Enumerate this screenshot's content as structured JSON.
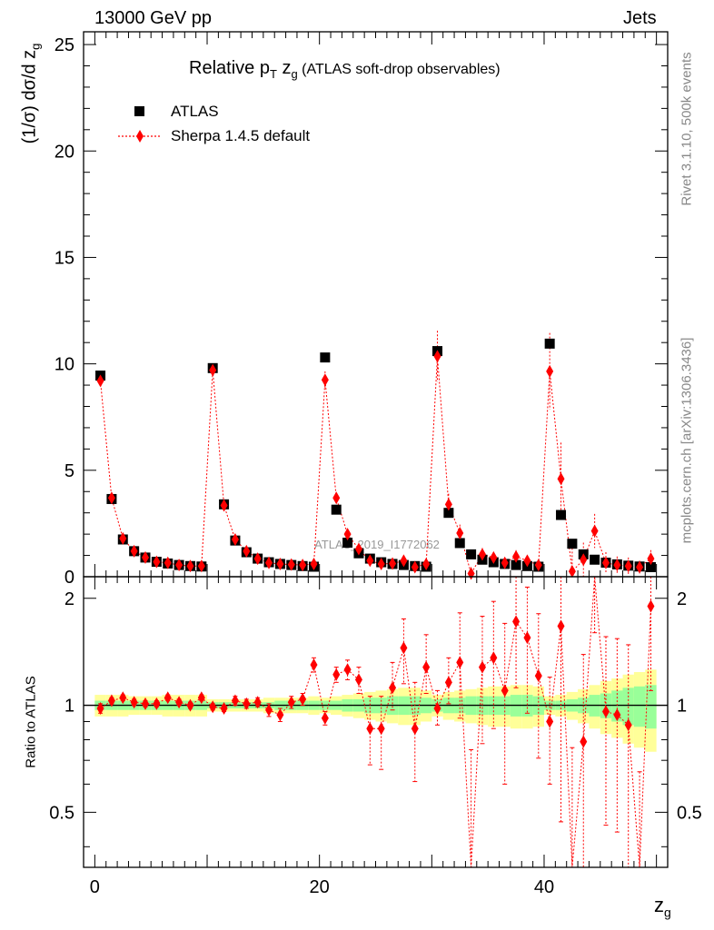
{
  "header": {
    "left": "13000 GeV pp",
    "right": "Jets"
  },
  "side_text": {
    "rivet": "Rivet 3.1.10,  500k events",
    "mcplots": "mcplots.cern.ch [arXiv:1306.3436]"
  },
  "watermark": "ATLAS_2019_I1772062",
  "legend": {
    "data_label": "ATLAS",
    "mc_label": "Sherpa 1.4.5 default"
  },
  "colors": {
    "data": "#000000",
    "mc": "#ff0000",
    "band_inner": "#99ff99",
    "band_outer": "#ffff99",
    "watermark": "#999999"
  },
  "chart_data": {
    "type": "scatter",
    "title_parts": {
      "pre": "Relative p",
      "sub1": "T",
      "mid": " z",
      "sub2": "g",
      "post": " (ATLAS soft-drop observables)"
    },
    "ylabel_upper": {
      "pre": "(1/σ) dσ/d z",
      "sub": "g"
    },
    "ylabel_lower": "Ratio to ATLAS",
    "xlabel": {
      "main": "z",
      "sub": "g"
    },
    "xlim": [
      -1,
      51
    ],
    "ylim_upper": [
      0,
      25.6
    ],
    "ylim_lower": [
      0.35,
      2.3
    ],
    "x_ticks": [
      "0",
      "20",
      "40"
    ],
    "y_ticks_upper": [
      "0",
      "5",
      "10",
      "15",
      "20",
      "25"
    ],
    "y_ticks_lower": [
      "0.5",
      "1",
      "2"
    ],
    "x": [
      0.5,
      1.5,
      2.5,
      3.5,
      4.5,
      5.5,
      6.5,
      7.5,
      8.5,
      9.5,
      10.5,
      11.5,
      12.5,
      13.5,
      14.5,
      15.5,
      16.5,
      17.5,
      18.5,
      19.5,
      20.5,
      21.5,
      22.5,
      23.5,
      24.5,
      25.5,
      26.5,
      27.5,
      28.5,
      29.5,
      30.5,
      31.5,
      32.5,
      33.5,
      34.5,
      35.5,
      36.5,
      37.5,
      38.5,
      39.5,
      40.5,
      41.5,
      42.5,
      43.5,
      44.5,
      45.5,
      46.5,
      47.5,
      48.5,
      49.5
    ],
    "series": [
      {
        "name": "ATLAS",
        "marker": "square",
        "values": [
          9.45,
          3.65,
          1.75,
          1.2,
          0.9,
          0.7,
          0.62,
          0.55,
          0.5,
          0.48,
          9.8,
          3.4,
          1.7,
          1.15,
          0.85,
          0.68,
          0.6,
          0.55,
          0.5,
          0.47,
          10.3,
          3.15,
          1.6,
          1.1,
          0.85,
          0.68,
          0.6,
          0.55,
          0.5,
          0.47,
          10.6,
          3.0,
          1.58,
          1.05,
          0.8,
          0.68,
          0.6,
          0.55,
          0.5,
          0.47,
          10.95,
          2.9,
          1.55,
          1.05,
          0.8,
          0.66,
          0.58,
          0.52,
          0.48,
          0.45
        ]
      },
      {
        "name": "Sherpa 1.4.5 default",
        "marker": "diamond",
        "values": [
          9.2,
          3.7,
          1.8,
          1.2,
          0.9,
          0.7,
          0.65,
          0.55,
          0.5,
          0.5,
          9.7,
          3.35,
          1.75,
          1.2,
          0.85,
          0.65,
          0.6,
          0.57,
          0.55,
          0.6,
          9.25,
          3.7,
          2.0,
          1.3,
          0.75,
          0.6,
          0.62,
          0.75,
          0.45,
          0.6,
          10.35,
          3.4,
          2.05,
          0.15,
          1.05,
          0.9,
          0.65,
          0.95,
          0.75,
          0.55,
          9.65,
          4.6,
          0.25,
          0.8,
          2.15,
          0.65,
          0.55,
          0.5,
          0.45,
          0.85
        ],
        "errors": [
          0.1,
          0.05,
          0.04,
          0.03,
          0.02,
          0.02,
          0.02,
          0.02,
          0.02,
          0.02,
          0.15,
          0.08,
          0.05,
          0.04,
          0.03,
          0.03,
          0.03,
          0.03,
          0.03,
          0.04,
          0.4,
          0.2,
          0.15,
          0.1,
          0.1,
          0.08,
          0.08,
          0.1,
          0.08,
          0.1,
          1.2,
          0.5,
          0.4,
          0.3,
          0.3,
          0.25,
          0.25,
          0.3,
          0.25,
          0.2,
          1.8,
          1.7,
          1.1,
          0.8,
          0.8,
          0.5,
          0.4,
          0.4,
          0.3,
          0.4
        ]
      }
    ],
    "ratio": {
      "values": [
        0.98,
        1.03,
        1.05,
        1.02,
        1.01,
        1.01,
        1.05,
        1.02,
        1.0,
        1.05,
        0.99,
        0.98,
        1.03,
        1.01,
        1.02,
        0.97,
        0.94,
        1.02,
        1.04,
        1.3,
        0.92,
        1.22,
        1.26,
        1.18,
        0.86,
        0.86,
        1.12,
        1.45,
        0.86,
        1.28,
        0.98,
        1.16,
        1.32,
        0.15,
        1.28,
        1.36,
        1.1,
        1.72,
        1.55,
        1.21,
        0.9,
        1.67,
        0.16,
        0.79,
        2.6,
        0.96,
        0.94,
        0.88,
        0.15,
        1.9
      ],
      "err_low": [
        0.03,
        0.02,
        0.02,
        0.02,
        0.02,
        0.02,
        0.02,
        0.02,
        0.02,
        0.02,
        0.02,
        0.02,
        0.03,
        0.03,
        0.03,
        0.04,
        0.04,
        0.04,
        0.04,
        0.06,
        0.04,
        0.06,
        0.08,
        0.1,
        0.18,
        0.2,
        0.15,
        0.3,
        0.25,
        0.2,
        0.1,
        0.15,
        0.4,
        0.4,
        0.5,
        0.5,
        0.5,
        0.6,
        0.6,
        0.5,
        0.3,
        1.2,
        0.5,
        0.5,
        1.0,
        0.5,
        0.5,
        0.6,
        0.5,
        0.8
      ],
      "err_high": [
        0.03,
        0.02,
        0.02,
        0.02,
        0.02,
        0.02,
        0.02,
        0.02,
        0.02,
        0.02,
        0.02,
        0.02,
        0.03,
        0.03,
        0.03,
        0.04,
        0.04,
        0.04,
        0.04,
        0.06,
        0.04,
        0.06,
        0.08,
        0.1,
        0.2,
        0.2,
        0.2,
        0.3,
        0.3,
        0.3,
        0.12,
        0.2,
        0.5,
        0.6,
        0.5,
        0.6,
        0.6,
        0.7,
        0.6,
        0.6,
        0.3,
        0.8,
        0.6,
        0.6,
        1.0,
        0.6,
        0.6,
        0.6,
        0.5,
        0.8
      ],
      "band_inner": [
        0.03,
        0.03,
        0.03,
        0.03,
        0.03,
        0.03,
        0.03,
        0.03,
        0.03,
        0.03,
        0.02,
        0.02,
        0.02,
        0.02,
        0.02,
        0.02,
        0.03,
        0.03,
        0.03,
        0.03,
        0.03,
        0.03,
        0.04,
        0.04,
        0.05,
        0.05,
        0.06,
        0.06,
        0.06,
        0.05,
        0.04,
        0.05,
        0.05,
        0.06,
        0.06,
        0.06,
        0.06,
        0.07,
        0.07,
        0.06,
        0.03,
        0.03,
        0.04,
        0.05,
        0.07,
        0.08,
        0.1,
        0.12,
        0.13,
        0.14
      ],
      "band_outer": [
        0.07,
        0.07,
        0.07,
        0.06,
        0.06,
        0.06,
        0.07,
        0.07,
        0.07,
        0.07,
        0.04,
        0.04,
        0.04,
        0.04,
        0.04,
        0.05,
        0.05,
        0.05,
        0.05,
        0.06,
        0.05,
        0.06,
        0.07,
        0.08,
        0.09,
        0.1,
        0.11,
        0.12,
        0.12,
        0.1,
        0.07,
        0.09,
        0.1,
        0.11,
        0.12,
        0.13,
        0.13,
        0.14,
        0.14,
        0.13,
        0.06,
        0.07,
        0.09,
        0.11,
        0.14,
        0.17,
        0.19,
        0.22,
        0.24,
        0.26
      ]
    }
  }
}
